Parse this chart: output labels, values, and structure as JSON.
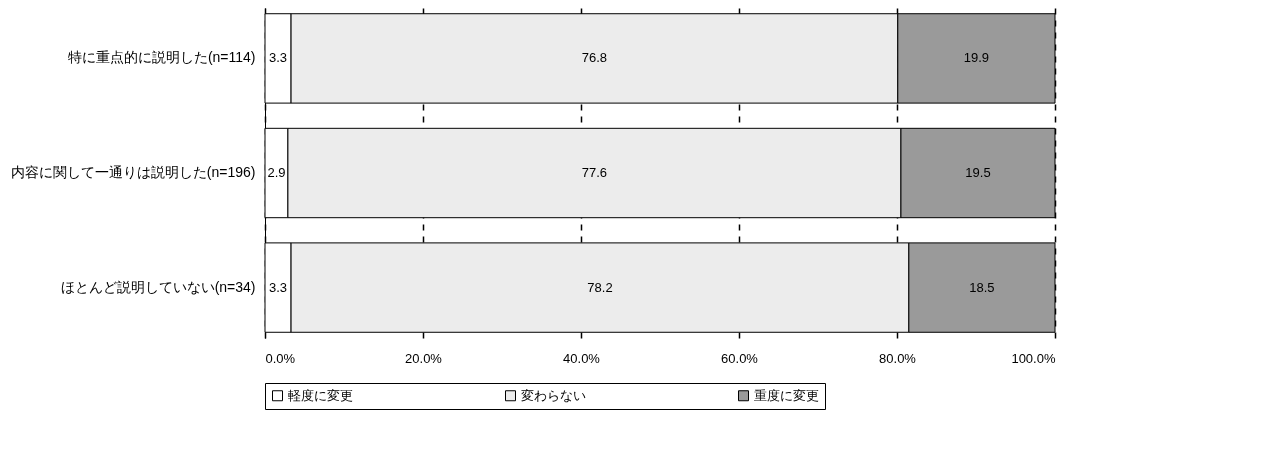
{
  "chart_data": {
    "type": "bar",
    "orientation": "horizontal",
    "stacked": true,
    "categories": [
      "特に重点的に説明した(n=114)",
      "内容に関して一通りは説明した(n=196)",
      "ほとんど説明していない(n=34)"
    ],
    "series": [
      {
        "name": "軽度に変更",
        "color": "#ffffff",
        "values": [
          3.3,
          2.9,
          3.3
        ]
      },
      {
        "name": "変わらない",
        "color": "#ececec",
        "values": [
          76.8,
          77.6,
          78.2
        ]
      },
      {
        "name": "重度に変更",
        "color": "#9a9a9a",
        "values": [
          19.9,
          19.5,
          18.5
        ]
      }
    ],
    "xlim": [
      0,
      100
    ],
    "xticks": [
      {
        "value": 0,
        "label": "0.0%"
      },
      {
        "value": 20,
        "label": "20.0%"
      },
      {
        "value": 40,
        "label": "40.0%"
      },
      {
        "value": 60,
        "label": "60.0%"
      },
      {
        "value": 80,
        "label": "80.0%"
      },
      {
        "value": 100,
        "label": "100.0%"
      }
    ],
    "grid": "x",
    "legend": "bottom",
    "data_labels": true
  }
}
